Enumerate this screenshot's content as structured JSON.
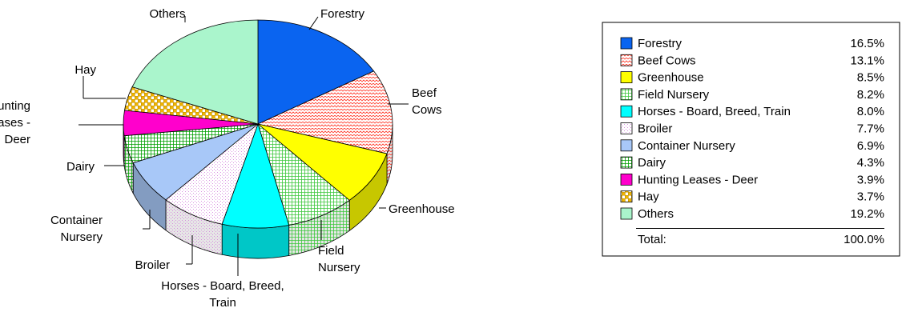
{
  "chart_data": {
    "type": "pie",
    "title": "",
    "categories": [
      "Forestry",
      "Beef Cows",
      "Greenhouse",
      "Field Nursery",
      "Horses - Board, Breed, Train",
      "Broiler",
      "Container Nursery",
      "Dairy",
      "Hunting Leases - Deer",
      "Hay",
      "Others"
    ],
    "values": [
      16.5,
      13.1,
      8.5,
      8.2,
      8.0,
      7.7,
      6.9,
      4.3,
      3.9,
      3.7,
      19.2
    ],
    "slices": [
      {
        "name": "Forestry",
        "value": 16.5,
        "pct": "16.5%",
        "color": "#0a64f0",
        "pattern": "solid"
      },
      {
        "name": "Beef Cows",
        "value": 13.1,
        "pct": "13.1%",
        "color": "#ff3a2a",
        "pattern": "zigzag"
      },
      {
        "name": "Greenhouse",
        "value": 8.5,
        "pct": "8.5%",
        "color": "#ffff00",
        "pattern": "solid"
      },
      {
        "name": "Field Nursery",
        "value": 8.2,
        "pct": "8.2%",
        "color": "#3cc83c",
        "pattern": "grid"
      },
      {
        "name": "Horses - Board, Breed, Train",
        "value": 8.0,
        "pct": "8.0%",
        "color": "#00ffff",
        "pattern": "solid"
      },
      {
        "name": "Broiler",
        "value": 7.7,
        "pct": "7.7%",
        "color": "#d27adc",
        "pattern": "dots"
      },
      {
        "name": "Container Nursery",
        "value": 6.9,
        "pct": "6.9%",
        "color": "#a8c8f8",
        "pattern": "solid"
      },
      {
        "name": "Dairy",
        "value": 4.3,
        "pct": "4.3%",
        "color": "#00a000",
        "pattern": "grid"
      },
      {
        "name": "Hunting Leases - Deer",
        "value": 3.9,
        "pct": "3.9%",
        "color": "#ff00cc",
        "pattern": "solid"
      },
      {
        "name": "Hay",
        "value": 3.7,
        "pct": "3.7%",
        "color": "#f0b400",
        "pattern": "checker"
      },
      {
        "name": "Others",
        "value": 19.2,
        "pct": "19.2%",
        "color": "#aaf5cc",
        "pattern": "solid"
      }
    ],
    "pie_labels": [
      [
        "Forestry"
      ],
      [
        "Beef",
        "Cows"
      ],
      [
        "Greenhouse"
      ],
      [
        "Field",
        "Nursery"
      ],
      [
        "Horses - Board, Breed,",
        "Train"
      ],
      [
        "Broiler"
      ],
      [
        "Container",
        "Nursery"
      ],
      [
        "Dairy"
      ],
      [
        "Hunting",
        "Leases -",
        "Deer"
      ],
      [
        "Hay"
      ],
      [
        "Others"
      ]
    ],
    "legend": {
      "position": "right",
      "total_label": "Total:",
      "total_value": "100.0%"
    }
  }
}
